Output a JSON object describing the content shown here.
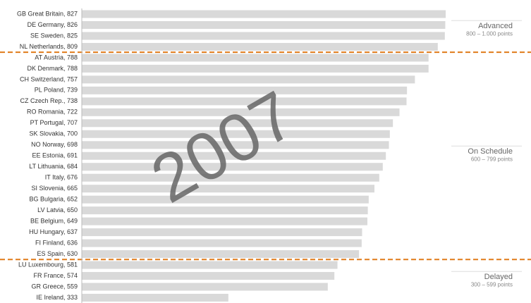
{
  "chart_data": {
    "type": "bar",
    "orientation": "horizontal",
    "annotation": "2007",
    "color": "#d9d9d9",
    "separator_color": "#e07b1a",
    "xlim": [
      0,
      1000
    ],
    "xticks": [
      0,
      100,
      200,
      300,
      400,
      500,
      600,
      700,
      800,
      900,
      1000
    ],
    "groups": [
      {
        "name": "Advanced",
        "subtitle": "800 – 1.000 points",
        "categories": [
          "GB Great Britain, 827",
          "DE Germany, 826",
          "SE Sweden, 825",
          "NL Netherlands, 809"
        ],
        "values": [
          827,
          826,
          825,
          809
        ]
      },
      {
        "name": "On Schedule",
        "subtitle": "600 – 799 points",
        "categories": [
          "AT Austria, 788",
          "DK Denmark, 788",
          "CH Switzerland, 757",
          "PL Poland, 739",
          "CZ Czech Rep., 738",
          "RO Romania, 722",
          "PT Portugal, 707",
          "SK Slovakia, 700",
          "NO Norway, 698",
          "EE Estonia, 691",
          "LT Lithuania, 684",
          "IT Italy, 676",
          "SI Slovenia, 665",
          "BG Bulgaria, 652",
          "LV Latvia, 650",
          "BE Belgium, 649",
          "HU Hungary, 637",
          "FI Finland, 636",
          "ES Spain, 630"
        ],
        "values": [
          788,
          788,
          757,
          739,
          738,
          722,
          707,
          700,
          698,
          691,
          684,
          676,
          665,
          652,
          650,
          649,
          637,
          636,
          630
        ]
      },
      {
        "name": "Delayed",
        "subtitle": "300 – 599 points",
        "categories": [
          "LU Luxembourg, 581",
          "FR France, 574",
          "GR Greece, 559",
          "IE Ireland, 333"
        ],
        "values": [
          581,
          574,
          559,
          333
        ]
      }
    ]
  }
}
